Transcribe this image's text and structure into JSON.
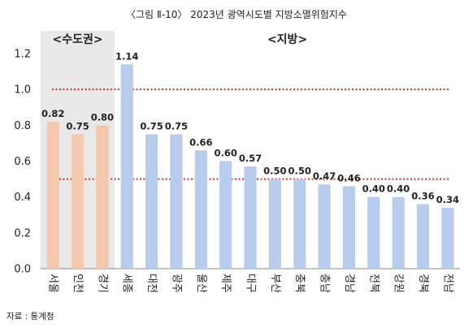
{
  "chart_data": {
    "type": "bar",
    "title": "〈그림 Ⅱ-10〉 2023년 광역시도별 지방소멸위험지수",
    "groups": [
      {
        "label": "<수도권>",
        "count": 3,
        "color": "#f2c9ae"
      },
      {
        "label": "<지방>",
        "count": 14,
        "color": "#b8cdee"
      }
    ],
    "categories": [
      "서울",
      "인천",
      "경기",
      "세종",
      "대전",
      "광주",
      "울산",
      "제주",
      "대구",
      "부산",
      "충북",
      "충남",
      "경남",
      "전북",
      "강원",
      "경북",
      "전남"
    ],
    "values": [
      0.82,
      0.75,
      0.8,
      1.14,
      0.75,
      0.75,
      0.66,
      0.6,
      0.57,
      0.5,
      0.5,
      0.47,
      0.46,
      0.4,
      0.4,
      0.36,
      0.34
    ],
    "value_labels": [
      "0.82",
      "0.75",
      "0.80",
      "1.14",
      "0.75",
      "0.75",
      "0.66",
      "0.60",
      "0.57",
      "0.50",
      "0.50",
      "0.47",
      "0.46",
      "0.40",
      "0.40",
      "0.36",
      "0.34"
    ],
    "yticks": [
      "0.0",
      "0.2",
      "0.4",
      "0.6",
      "0.8",
      "1.0",
      "1.2"
    ],
    "ylim": [
      0,
      1.2
    ],
    "reference_lines": [
      1.0,
      0.5
    ],
    "reference_line_color": "#c0392b",
    "grid": false,
    "xlabel": "",
    "ylabel": ""
  },
  "source": "자료 : 통계청"
}
